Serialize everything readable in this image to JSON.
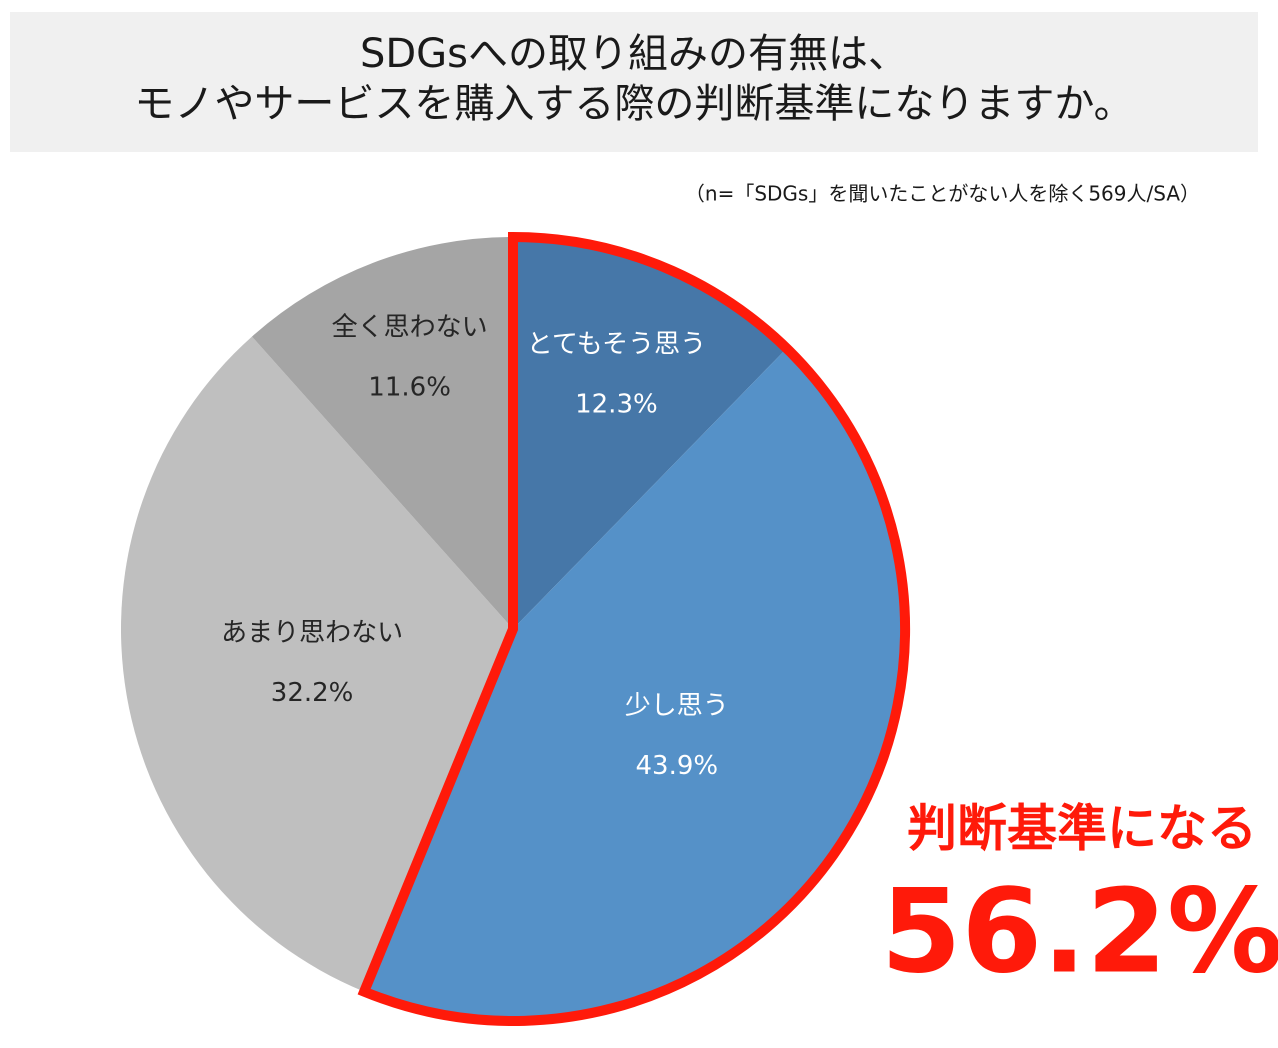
{
  "chart_data": {
    "type": "pie",
    "title_lines": [
      "SDGsへの取り組みの有無は、",
      "モノやサービスを購入する際の判断基準になりますか。"
    ],
    "subtitle": "（n=「SDGs」を聞いたことがない人を除く569人/SA）",
    "categories": [
      "とてもそう思う",
      "少し思う",
      "あまり思わない",
      "全く思わない"
    ],
    "values": [
      12.3,
      43.9,
      32.2,
      11.6
    ],
    "value_labels": [
      "12.3%",
      "43.9%",
      "32.2%",
      "11.6%"
    ],
    "colors": [
      "#4677a8",
      "#5591c8",
      "#bfbfbf",
      "#a5a5a5"
    ],
    "label_colors": [
      "#ffffff",
      "#ffffff",
      "#262626",
      "#262626"
    ],
    "highlight_color": "#ff1a0a",
    "annotations": [
      "判断基準になる",
      "56.2%"
    ]
  }
}
